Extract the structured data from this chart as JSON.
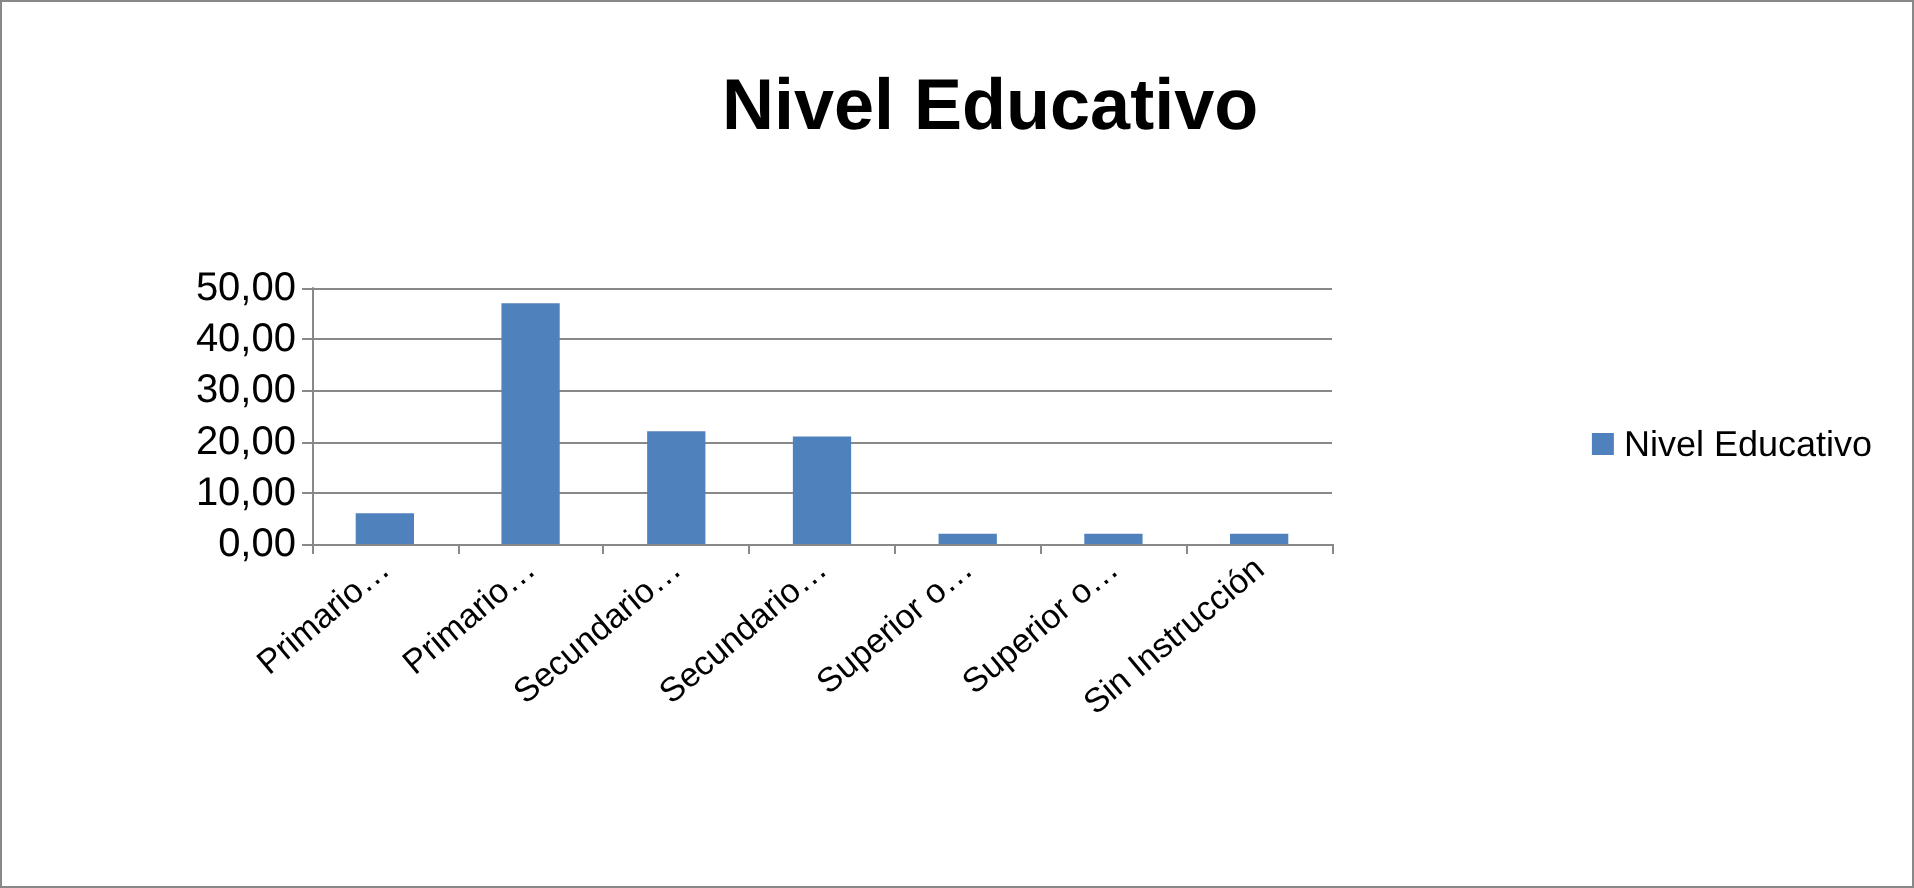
{
  "chart_data": {
    "type": "bar",
    "title": "Nivel Educativo",
    "categories": [
      "Primario…",
      "Primario…",
      "Secundario…",
      "Secundario…",
      "Superior o…",
      "Superior o…",
      "Sin Instrucción"
    ],
    "series": [
      {
        "name": "Nivel Educativo",
        "color": "#4f81bd",
        "values": [
          6,
          47,
          22,
          21,
          2,
          2,
          2
        ]
      }
    ],
    "ylim": [
      0,
      50
    ],
    "yticks": [
      {
        "value": 0,
        "label": "0,00"
      },
      {
        "value": 10,
        "label": "10,00"
      },
      {
        "value": 20,
        "label": "20,00"
      },
      {
        "value": 30,
        "label": "30,00"
      },
      {
        "value": 40,
        "label": "40,00"
      },
      {
        "value": 50,
        "label": "50,00"
      }
    ],
    "grid": "y",
    "legend": "right"
  }
}
